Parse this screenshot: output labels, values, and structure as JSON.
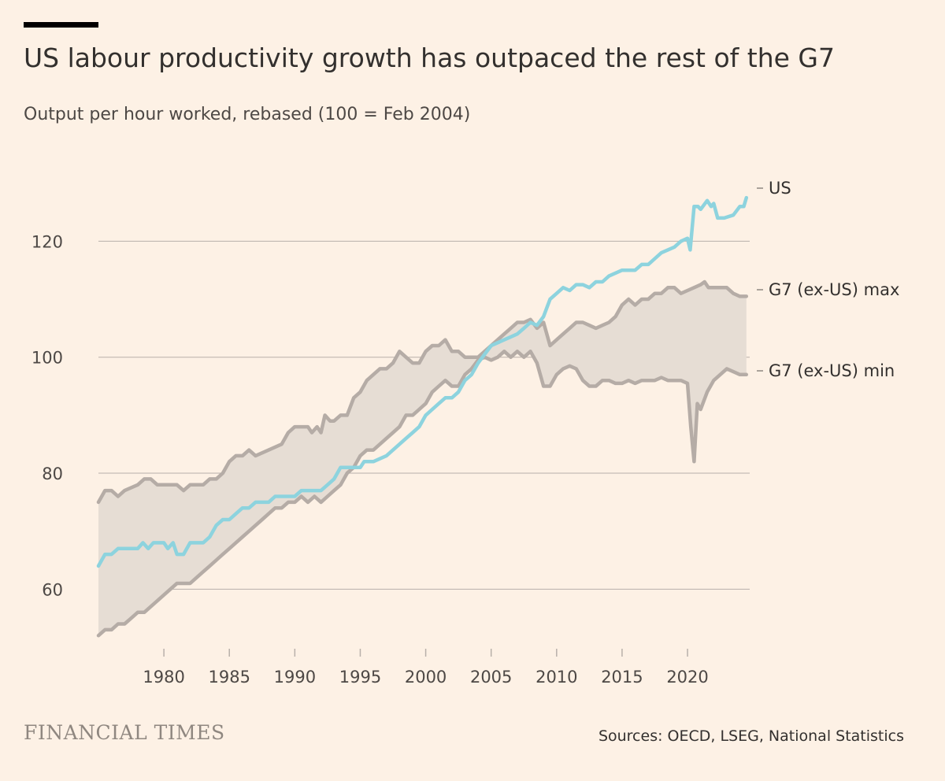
{
  "header": {
    "title": "US labour productivity growth has outpaced the rest of the G7",
    "subtitle": "Output per hour worked, rebased (100 = Feb 2004)"
  },
  "footer": {
    "brand": "FINANCIAL TIMES",
    "source": "Sources: OECD, LSEG, National Statistics"
  },
  "colors": {
    "background": "#FDF1E5",
    "us_line": "#8DD3DE",
    "g7_line": "#B5ACA6",
    "band_fill": "#E6DDD4",
    "grid": "#B8B0AA"
  },
  "chart_data": {
    "type": "line",
    "title": "US labour productivity growth has outpaced the rest of the G7",
    "ylabel": "Output per hour worked, rebased (100 = Feb 2004)",
    "xlabel": "",
    "xlim": [
      1975,
      2024.75
    ],
    "ylim": [
      50,
      132
    ],
    "y_ticks": [
      60,
      80,
      100,
      120
    ],
    "x_ticks": [
      1980,
      1985,
      1990,
      1995,
      2000,
      2005,
      2010,
      2015,
      2020
    ],
    "series": [
      {
        "name": "US",
        "points": [
          [
            1975,
            64
          ],
          [
            1975.5,
            66
          ],
          [
            1976,
            66
          ],
          [
            1976.5,
            67
          ],
          [
            1977,
            67
          ],
          [
            1978,
            67
          ],
          [
            1978.4,
            68
          ],
          [
            1978.8,
            67
          ],
          [
            1979.2,
            68
          ],
          [
            1980,
            68
          ],
          [
            1980.3,
            67
          ],
          [
            1980.7,
            68
          ],
          [
            1981,
            66
          ],
          [
            1981.5,
            66
          ],
          [
            1982,
            68
          ],
          [
            1983,
            68
          ],
          [
            1983.5,
            69
          ],
          [
            1984,
            71
          ],
          [
            1984.5,
            72
          ],
          [
            1985,
            72
          ],
          [
            1985.5,
            73
          ],
          [
            1986,
            74
          ],
          [
            1986.5,
            74
          ],
          [
            1987,
            75
          ],
          [
            1988,
            75
          ],
          [
            1988.5,
            76
          ],
          [
            1989,
            76
          ],
          [
            1990,
            76
          ],
          [
            1990.5,
            77
          ],
          [
            1991,
            77
          ],
          [
            1992,
            77
          ],
          [
            1992.5,
            78
          ],
          [
            1993,
            79
          ],
          [
            1993.5,
            81
          ],
          [
            1994,
            81
          ],
          [
            1995,
            81
          ],
          [
            1995.3,
            82
          ],
          [
            1996,
            82
          ],
          [
            1997,
            83
          ],
          [
            1997.5,
            84
          ],
          [
            1998,
            85
          ],
          [
            1998.5,
            86
          ],
          [
            1999,
            87
          ],
          [
            1999.5,
            88
          ],
          [
            2000,
            90
          ],
          [
            2000.5,
            91
          ],
          [
            2001,
            92
          ],
          [
            2001.5,
            93
          ],
          [
            2002,
            93
          ],
          [
            2002.5,
            94
          ],
          [
            2003,
            96
          ],
          [
            2003.5,
            97
          ],
          [
            2004,
            99
          ],
          [
            2004.5,
            100.5
          ],
          [
            2005,
            102
          ],
          [
            2005.5,
            102.5
          ],
          [
            2006,
            103
          ],
          [
            2006.5,
            103.5
          ],
          [
            2007,
            104
          ],
          [
            2007.5,
            105
          ],
          [
            2008,
            106
          ],
          [
            2008.5,
            105.5
          ],
          [
            2009,
            107
          ],
          [
            2009.5,
            110
          ],
          [
            2010,
            111
          ],
          [
            2010.5,
            112
          ],
          [
            2011,
            111.5
          ],
          [
            2011.5,
            112.5
          ],
          [
            2012,
            112.5
          ],
          [
            2012.5,
            112
          ],
          [
            2013,
            113
          ],
          [
            2013.5,
            113
          ],
          [
            2014,
            114
          ],
          [
            2015,
            115
          ],
          [
            2016,
            115
          ],
          [
            2016.5,
            116
          ],
          [
            2017,
            116
          ],
          [
            2017.5,
            117
          ],
          [
            2018,
            118
          ],
          [
            2018.5,
            118.5
          ],
          [
            2019,
            119
          ],
          [
            2019.5,
            120
          ],
          [
            2020,
            120.5
          ],
          [
            2020.2,
            118.5
          ],
          [
            2020.5,
            126
          ],
          [
            2020.8,
            126
          ],
          [
            2021,
            125.5
          ],
          [
            2021.5,
            127
          ],
          [
            2021.8,
            126
          ],
          [
            2022,
            126.5
          ],
          [
            2022.3,
            124
          ],
          [
            2022.8,
            124
          ],
          [
            2023.5,
            124.5
          ],
          [
            2024,
            126
          ],
          [
            2024.3,
            126
          ],
          [
            2024.5,
            127.5
          ]
        ]
      },
      {
        "name": "G7 (ex-US) max",
        "points": [
          [
            1975,
            75
          ],
          [
            1975.5,
            77
          ],
          [
            1976,
            77
          ],
          [
            1976.5,
            76
          ],
          [
            1977,
            77
          ],
          [
            1978,
            78
          ],
          [
            1978.5,
            79
          ],
          [
            1979,
            79
          ],
          [
            1979.5,
            78
          ],
          [
            1980,
            78
          ],
          [
            1981,
            78
          ],
          [
            1981.5,
            77
          ],
          [
            1982,
            78
          ],
          [
            1983,
            78
          ],
          [
            1983.5,
            79
          ],
          [
            1984,
            79
          ],
          [
            1984.5,
            80
          ],
          [
            1985,
            82
          ],
          [
            1985.5,
            83
          ],
          [
            1986,
            83
          ],
          [
            1986.5,
            84
          ],
          [
            1987,
            83
          ],
          [
            1988,
            84
          ],
          [
            1989,
            85
          ],
          [
            1989.5,
            87
          ],
          [
            1990,
            88
          ],
          [
            1991,
            88
          ],
          [
            1991.3,
            87
          ],
          [
            1991.7,
            88
          ],
          [
            1992,
            87
          ],
          [
            1992.3,
            90
          ],
          [
            1992.7,
            89
          ],
          [
            1993,
            89
          ],
          [
            1993.5,
            90
          ],
          [
            1994,
            90
          ],
          [
            1994.5,
            93
          ],
          [
            1995,
            94
          ],
          [
            1995.5,
            96
          ],
          [
            1996,
            97
          ],
          [
            1996.5,
            98
          ],
          [
            1997,
            98
          ],
          [
            1997.5,
            99
          ],
          [
            1998,
            101
          ],
          [
            1998.5,
            100
          ],
          [
            1999,
            99
          ],
          [
            1999.5,
            99
          ],
          [
            2000,
            101
          ],
          [
            2000.5,
            102
          ],
          [
            2001,
            102
          ],
          [
            2001.5,
            103
          ],
          [
            2002,
            101
          ],
          [
            2002.5,
            101
          ],
          [
            2003,
            100
          ],
          [
            2003.5,
            100
          ],
          [
            2004,
            100
          ],
          [
            2004.5,
            101
          ],
          [
            2005,
            102
          ],
          [
            2005.5,
            103
          ],
          [
            2006,
            104
          ],
          [
            2006.5,
            105
          ],
          [
            2007,
            106
          ],
          [
            2007.5,
            106
          ],
          [
            2008,
            106.5
          ],
          [
            2008.5,
            105
          ],
          [
            2009,
            106
          ],
          [
            2009.5,
            102
          ],
          [
            2010,
            103
          ],
          [
            2010.5,
            104
          ],
          [
            2011,
            105
          ],
          [
            2011.5,
            106
          ],
          [
            2012,
            106
          ],
          [
            2012.5,
            105.5
          ],
          [
            2013,
            105
          ],
          [
            2013.5,
            105.5
          ],
          [
            2014,
            106
          ],
          [
            2014.5,
            107
          ],
          [
            2015,
            109
          ],
          [
            2015.5,
            110
          ],
          [
            2016,
            109
          ],
          [
            2016.5,
            110
          ],
          [
            2017,
            110
          ],
          [
            2017.5,
            111
          ],
          [
            2018,
            111
          ],
          [
            2018.5,
            112
          ],
          [
            2019,
            112
          ],
          [
            2019.5,
            111
          ],
          [
            2020,
            111.5
          ],
          [
            2020.5,
            112
          ],
          [
            2021,
            112.5
          ],
          [
            2021.3,
            113
          ],
          [
            2021.6,
            112
          ],
          [
            2022,
            112
          ],
          [
            2022.5,
            112
          ],
          [
            2023,
            112
          ],
          [
            2023.5,
            111
          ],
          [
            2024,
            110.5
          ],
          [
            2024.5,
            110.5
          ]
        ]
      },
      {
        "name": "G7 (ex-US) min",
        "points": [
          [
            1975,
            52
          ],
          [
            1975.5,
            53
          ],
          [
            1976,
            53
          ],
          [
            1976.5,
            54
          ],
          [
            1977,
            54
          ],
          [
            1977.5,
            55
          ],
          [
            1978,
            56
          ],
          [
            1978.5,
            56
          ],
          [
            1979,
            57
          ],
          [
            1979.5,
            58
          ],
          [
            1980,
            59
          ],
          [
            1980.5,
            60
          ],
          [
            1981,
            61
          ],
          [
            1981.5,
            61
          ],
          [
            1982,
            61
          ],
          [
            1982.5,
            62
          ],
          [
            1983,
            63
          ],
          [
            1983.5,
            64
          ],
          [
            1984,
            65
          ],
          [
            1984.5,
            66
          ],
          [
            1985,
            67
          ],
          [
            1985.5,
            68
          ],
          [
            1986,
            69
          ],
          [
            1986.5,
            70
          ],
          [
            1987,
            71
          ],
          [
            1987.5,
            72
          ],
          [
            1988,
            73
          ],
          [
            1988.5,
            74
          ],
          [
            1989,
            74
          ],
          [
            1989.5,
            75
          ],
          [
            1990,
            75
          ],
          [
            1990.5,
            76
          ],
          [
            1991,
            75
          ],
          [
            1991.5,
            76
          ],
          [
            1992,
            75
          ],
          [
            1992.5,
            76
          ],
          [
            1993,
            77
          ],
          [
            1993.5,
            78
          ],
          [
            1994,
            80
          ],
          [
            1994.5,
            81
          ],
          [
            1995,
            83
          ],
          [
            1995.5,
            84
          ],
          [
            1996,
            84
          ],
          [
            1996.5,
            85
          ],
          [
            1997,
            86
          ],
          [
            1997.5,
            87
          ],
          [
            1998,
            88
          ],
          [
            1998.5,
            90
          ],
          [
            1999,
            90
          ],
          [
            1999.5,
            91
          ],
          [
            2000,
            92
          ],
          [
            2000.5,
            94
          ],
          [
            2001,
            95
          ],
          [
            2001.5,
            96
          ],
          [
            2002,
            95
          ],
          [
            2002.5,
            95
          ],
          [
            2003,
            97
          ],
          [
            2003.5,
            98
          ],
          [
            2004,
            99.5
          ],
          [
            2004.5,
            100
          ],
          [
            2005,
            99.5
          ],
          [
            2005.5,
            100
          ],
          [
            2006,
            101
          ],
          [
            2006.5,
            100
          ],
          [
            2007,
            101
          ],
          [
            2007.5,
            100
          ],
          [
            2008,
            101
          ],
          [
            2008.5,
            99
          ],
          [
            2009,
            95
          ],
          [
            2009.5,
            95
          ],
          [
            2010,
            97
          ],
          [
            2010.5,
            98
          ],
          [
            2011,
            98.5
          ],
          [
            2011.5,
            98
          ],
          [
            2012,
            96
          ],
          [
            2012.5,
            95
          ],
          [
            2013,
            95
          ],
          [
            2013.5,
            96
          ],
          [
            2014,
            96
          ],
          [
            2014.5,
            95.5
          ],
          [
            2015,
            95.5
          ],
          [
            2015.5,
            96
          ],
          [
            2016,
            95.5
          ],
          [
            2016.5,
            96
          ],
          [
            2017,
            96
          ],
          [
            2017.5,
            96
          ],
          [
            2018,
            96.5
          ],
          [
            2018.5,
            96
          ],
          [
            2019,
            96
          ],
          [
            2019.5,
            96
          ],
          [
            2020,
            95.5
          ],
          [
            2020.25,
            88
          ],
          [
            2020.5,
            82
          ],
          [
            2020.75,
            92
          ],
          [
            2021,
            91
          ],
          [
            2021.5,
            94
          ],
          [
            2022,
            96
          ],
          [
            2022.5,
            97
          ],
          [
            2023,
            98
          ],
          [
            2023.5,
            97.5
          ],
          [
            2024,
            97
          ],
          [
            2024.5,
            97
          ]
        ]
      }
    ],
    "line_labels": [
      {
        "series": "US",
        "text": "US"
      },
      {
        "series": "G7 (ex-US) max",
        "text": "G7 (ex-US) max"
      },
      {
        "series": "G7 (ex-US) min",
        "text": "G7 (ex-US) min"
      }
    ],
    "band": {
      "between": [
        "G7 (ex-US) max",
        "G7 (ex-US) min"
      ]
    }
  }
}
